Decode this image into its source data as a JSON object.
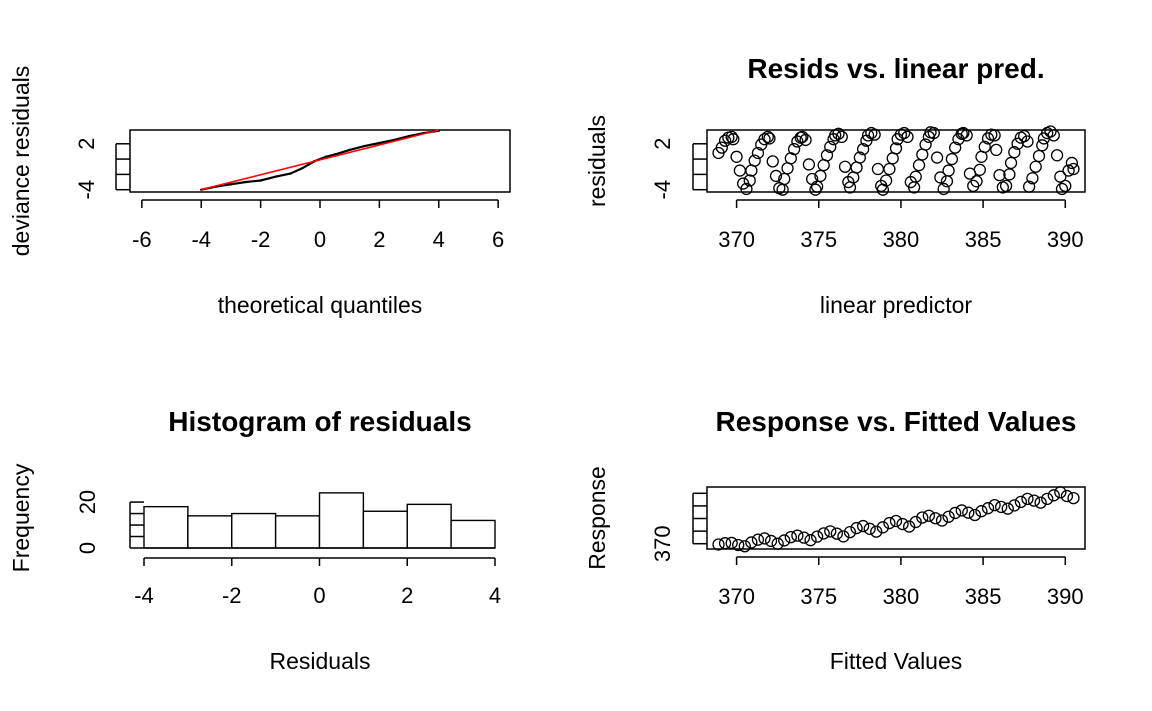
{
  "chart_data": [
    {
      "type": "scatter",
      "title": "",
      "xlabel": "theoretical quantiles",
      "ylabel": "deviance residuals",
      "xlim": [
        -6.4,
        6.4
      ],
      "ylim": [
        -4.3,
        3.8
      ],
      "x_ticks": [
        "-6",
        "-4",
        "-2",
        "0",
        "2",
        "4",
        "6"
      ],
      "y_ticks": [
        "-4",
        "2"
      ],
      "reference_line": {
        "color": "#ff0000",
        "from": [
          -4,
          -4
        ],
        "to": [
          4,
          3.8
        ]
      },
      "series": [
        {
          "x": [
            -4.0,
            -3.5,
            -3.0,
            -2.5,
            -2.0,
            -1.5,
            -1.0,
            -0.6,
            -0.2,
            0.2,
            0.5,
            1.0,
            1.5,
            2.0,
            2.5,
            3.0,
            3.5,
            4.0
          ],
          "y": [
            -4.0,
            -3.6,
            -3.3,
            -3.0,
            -2.8,
            -2.3,
            -1.9,
            -1.2,
            -0.3,
            0.3,
            0.6,
            1.2,
            1.7,
            2.1,
            2.5,
            3.0,
            3.4,
            3.7
          ]
        }
      ]
    },
    {
      "type": "scatter",
      "title": "Resids vs. linear pred.",
      "xlabel": "linear predictor",
      "ylabel": "residuals",
      "xlim": [
        368.2,
        391.2
      ],
      "ylim": [
        -4.3,
        3.8
      ],
      "x_ticks": [
        "370",
        "375",
        "380",
        "385",
        "390"
      ],
      "y_ticks": [
        "-4",
        "2"
      ],
      "series": [
        {
          "x": [
            368.9,
            369.1,
            369.3,
            369.5,
            369.7,
            369.8,
            370.0,
            370.2,
            370.4,
            370.6,
            370.8,
            370.9,
            371.1,
            371.3,
            371.5,
            371.7,
            371.9,
            372.0,
            372.2,
            372.4,
            372.6,
            372.8,
            372.9,
            373.1,
            373.3,
            373.5,
            373.7,
            373.9,
            374.0,
            374.2,
            374.4,
            374.6,
            374.8,
            374.9,
            375.1,
            375.3,
            375.5,
            375.7,
            375.9,
            376.0,
            376.2,
            376.4,
            376.6,
            376.8,
            376.9,
            377.1,
            377.3,
            377.5,
            377.7,
            377.9,
            378.0,
            378.2,
            378.4,
            378.6,
            378.8,
            378.9,
            379.1,
            379.3,
            379.5,
            379.7,
            379.8,
            380.0,
            380.2,
            380.4,
            380.6,
            380.8,
            380.9,
            381.1,
            381.3,
            381.5,
            381.7,
            381.8,
            382.0,
            382.2,
            382.4,
            382.6,
            382.8,
            382.9,
            383.1,
            383.3,
            383.5,
            383.7,
            383.8,
            384.0,
            384.2,
            384.4,
            384.6,
            384.8,
            384.9,
            385.1,
            385.3,
            385.5,
            385.7,
            385.8,
            386.0,
            386.2,
            386.4,
            386.6,
            386.7,
            386.9,
            387.1,
            387.3,
            387.5,
            387.7,
            387.8,
            388.0,
            388.2,
            388.4,
            388.6,
            388.7,
            388.9,
            389.1,
            389.3,
            389.5,
            389.7,
            389.8,
            390.0,
            390.2,
            390.4,
            390.5
          ],
          "y": [
            0.8,
            1.5,
            2.4,
            2.8,
            2.9,
            2.6,
            0.3,
            -1.5,
            -3.2,
            -3.9,
            -2.8,
            -1.5,
            -0.2,
            0.8,
            1.9,
            2.6,
            2.9,
            2.7,
            -0.3,
            -2.2,
            -3.8,
            -4.0,
            -2.6,
            -1.2,
            0.1,
            1.3,
            2.3,
            2.8,
            2.9,
            2.5,
            -0.7,
            -2.6,
            -4.0,
            -3.6,
            -2.2,
            -0.8,
            0.5,
            1.6,
            2.6,
            3.1,
            3.3,
            2.9,
            -1.0,
            -3.0,
            -3.7,
            -2.4,
            -1.1,
            0.2,
            1.3,
            2.4,
            3.1,
            3.4,
            3.2,
            -1.3,
            -3.5,
            -4.0,
            -2.8,
            -1.3,
            0.1,
            1.4,
            2.6,
            3.2,
            3.4,
            2.9,
            -3.0,
            -3.7,
            -2.3,
            -0.8,
            0.6,
            1.9,
            2.9,
            3.5,
            3.4,
            0.2,
            -2.4,
            -3.9,
            -2.9,
            -1.5,
            0.0,
            1.5,
            2.6,
            3.3,
            3.4,
            3.1,
            -1.9,
            -3.5,
            -2.9,
            -1.4,
            0.3,
            1.6,
            2.7,
            3.2,
            3.1,
            1.2,
            -2.1,
            -3.7,
            -3.5,
            -2.0,
            -0.5,
            0.9,
            2.0,
            2.8,
            3.0,
            2.3,
            -3.6,
            -2.5,
            -1.0,
            0.4,
            1.8,
            2.7,
            3.4,
            3.6,
            3.1,
            0.5,
            -2.3,
            -3.9,
            -3.5,
            -1.5,
            -0.5,
            -1.3
          ]
        }
      ]
    },
    {
      "type": "bar",
      "title": "Histogram of residuals",
      "xlabel": "Residuals",
      "ylabel": "Frequency",
      "xlim": [
        -4.2,
        4.2
      ],
      "ylim": [
        0,
        27
      ],
      "x_ticks": [
        "-4",
        "-2",
        "0",
        "2",
        "4"
      ],
      "y_ticks": [
        "0",
        "20"
      ],
      "bins": [
        [
          -4,
          -3
        ],
        [
          -3,
          -2
        ],
        [
          -2,
          -1
        ],
        [
          -1,
          0
        ],
        [
          0,
          1
        ],
        [
          1,
          2
        ],
        [
          2,
          3
        ],
        [
          3,
          4
        ]
      ],
      "values": [
        18,
        14,
        15,
        14,
        24,
        16,
        19,
        12
      ]
    },
    {
      "type": "scatter",
      "title": "Response vs. Fitted Values",
      "xlabel": "Fitted Values",
      "ylabel": "Response",
      "xlim": [
        368.2,
        391.2
      ],
      "ylim": [
        367.9,
        392.5
      ],
      "x_ticks": [
        "370",
        "375",
        "380",
        "385",
        "390"
      ],
      "y_ticks": [
        "370"
      ],
      "series": [
        {
          "x": [
            368.9,
            369.3,
            369.7,
            370.1,
            370.5,
            370.9,
            371.3,
            371.7,
            372.1,
            372.5,
            372.9,
            373.3,
            373.7,
            374.1,
            374.5,
            374.9,
            375.3,
            375.7,
            376.1,
            376.5,
            376.9,
            377.3,
            377.7,
            378.1,
            378.5,
            378.9,
            379.3,
            379.7,
            380.1,
            380.5,
            380.9,
            381.3,
            381.7,
            382.1,
            382.5,
            382.9,
            383.3,
            383.7,
            384.1,
            384.5,
            384.9,
            385.3,
            385.7,
            386.1,
            386.5,
            386.9,
            387.3,
            387.7,
            388.1,
            388.5,
            388.9,
            389.3,
            389.7,
            390.1,
            390.5
          ],
          "y": [
            369.7,
            370.2,
            370.3,
            369.5,
            369.0,
            370.5,
            371.6,
            372.1,
            371.1,
            370.0,
            371.3,
            372.6,
            373.2,
            372.4,
            371.4,
            372.8,
            374.1,
            374.9,
            374.0,
            372.9,
            374.6,
            376.2,
            377.0,
            375.9,
            374.8,
            376.5,
            378.2,
            379.0,
            377.8,
            376.8,
            378.6,
            380.4,
            381.1,
            380.1,
            379.2,
            380.7,
            382.2,
            383.2,
            382.3,
            381.4,
            382.9,
            384.1,
            385.3,
            384.6,
            383.9,
            385.2,
            386.6,
            387.8,
            387.1,
            386.3,
            387.8,
            389.2,
            390.4,
            388.9,
            388.1
          ]
        }
      ]
    }
  ]
}
